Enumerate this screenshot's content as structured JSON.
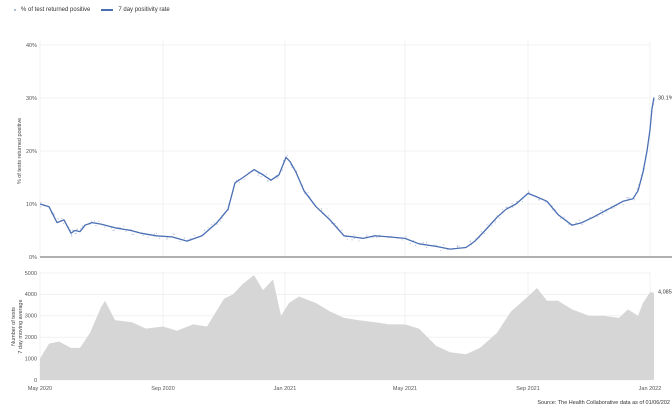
{
  "legend": {
    "points_label": "% of test returned positive",
    "line_label": "7 day positivity rate"
  },
  "source": "Source: The Health Collaborative data as of 01/06/202",
  "colors": {
    "line": "#4b6fb5",
    "points": "#9aa9c8",
    "area": "#d6d6d6",
    "grid": "#e8e8e8",
    "divider": "#b0b0b0"
  },
  "chart_data": [
    {
      "type": "line",
      "ylabel": "% of tests returned positive",
      "ylim": [
        0,
        40
      ],
      "yticks": [
        "0%",
        "10%",
        "20%",
        "30%",
        "40%"
      ],
      "end_label": "30.1%",
      "series": [
        {
          "name": "7 day positivity rate",
          "x": [
            "2020-05-01",
            "2020-05-10",
            "2020-05-18",
            "2020-05-25",
            "2020-06-01",
            "2020-06-05",
            "2020-06-10",
            "2020-06-15",
            "2020-06-22",
            "2020-07-01",
            "2020-07-15",
            "2020-07-31",
            "2020-08-10",
            "2020-08-25",
            "2020-09-10",
            "2020-09-25",
            "2020-10-10",
            "2020-10-25",
            "2020-11-05",
            "2020-11-12",
            "2020-11-20",
            "2020-12-01",
            "2020-12-10",
            "2020-12-18",
            "2020-12-26",
            "2021-01-02",
            "2021-01-06",
            "2021-01-12",
            "2021-01-20",
            "2021-02-01",
            "2021-02-15",
            "2021-03-01",
            "2021-03-10",
            "2021-03-20",
            "2021-04-01",
            "2021-04-15",
            "2021-05-01",
            "2021-05-15",
            "2021-06-01",
            "2021-06-15",
            "2021-07-01",
            "2021-07-10",
            "2021-07-20",
            "2021-08-01",
            "2021-08-10",
            "2021-08-20",
            "2021-09-01",
            "2021-09-08",
            "2021-09-20",
            "2021-10-01",
            "2021-10-15",
            "2021-10-25",
            "2021-11-05",
            "2021-11-15",
            "2021-11-25",
            "2021-12-05",
            "2021-12-15",
            "2021-12-20",
            "2021-12-25",
            "2021-12-29",
            "2022-01-01",
            "2022-01-03",
            "2022-01-05"
          ],
          "values": [
            10,
            9.5,
            6.5,
            7,
            4.5,
            5,
            4.8,
            6,
            6.5,
            6.2,
            5.5,
            5,
            4.5,
            4,
            3.8,
            3,
            4,
            6.5,
            9,
            14,
            15,
            16.5,
            15.5,
            14.5,
            15.5,
            18.8,
            18,
            16,
            12.5,
            9.5,
            7,
            4,
            3.8,
            3.5,
            4,
            3.8,
            3.5,
            2.5,
            2,
            1.5,
            1.8,
            3,
            5,
            7.5,
            9,
            10,
            12,
            11.5,
            10.5,
            8,
            6,
            6.5,
            7.5,
            8.5,
            9.5,
            10.5,
            11,
            12.5,
            16,
            20,
            24,
            28,
            30.1
          ]
        }
      ]
    },
    {
      "type": "area",
      "ylabel": "Number of tests\n7 day moving average",
      "ylim": [
        0,
        5000
      ],
      "yticks": [
        "0",
        "1000",
        "2000",
        "3000",
        "4000",
        "5000"
      ],
      "xticks": [
        "May 2020",
        "Sep 2020",
        "Jan 2021",
        "May 2021",
        "Sep 2021",
        "Jan 2022"
      ],
      "end_label": "4,085",
      "series": [
        {
          "name": "Number of tests",
          "x": [
            "2020-05-01",
            "2020-05-10",
            "2020-05-20",
            "2020-06-01",
            "2020-06-10",
            "2020-06-20",
            "2020-07-01",
            "2020-07-05",
            "2020-07-15",
            "2020-08-01",
            "2020-08-15",
            "2020-09-01",
            "2020-09-15",
            "2020-10-01",
            "2020-10-15",
            "2020-11-01",
            "2020-11-10",
            "2020-11-20",
            "2020-12-01",
            "2020-12-10",
            "2020-12-20",
            "2020-12-28",
            "2021-01-05",
            "2021-01-15",
            "2021-02-01",
            "2021-02-15",
            "2021-03-01",
            "2021-03-15",
            "2021-04-01",
            "2021-04-15",
            "2021-05-01",
            "2021-05-15",
            "2021-06-01",
            "2021-06-15",
            "2021-07-01",
            "2021-07-15",
            "2021-08-01",
            "2021-08-15",
            "2021-09-01",
            "2021-09-10",
            "2021-09-20",
            "2021-10-01",
            "2021-10-15",
            "2021-11-01",
            "2021-11-15",
            "2021-12-01",
            "2021-12-10",
            "2021-12-20",
            "2021-12-25",
            "2022-01-01",
            "2022-01-05"
          ],
          "values": [
            1000,
            1700,
            1800,
            1500,
            1500,
            2200,
            3400,
            3700,
            2800,
            2700,
            2400,
            2500,
            2300,
            2600,
            2500,
            3800,
            4000,
            4500,
            4900,
            4200,
            4700,
            3000,
            3600,
            3900,
            3600,
            3200,
            2900,
            2800,
            2700,
            2600,
            2600,
            2400,
            1600,
            1300,
            1200,
            1500,
            2200,
            3200,
            3900,
            4300,
            3700,
            3700,
            3300,
            3000,
            3000,
            2900,
            3300,
            3000,
            3600,
            4100,
            4085
          ]
        }
      ]
    }
  ]
}
